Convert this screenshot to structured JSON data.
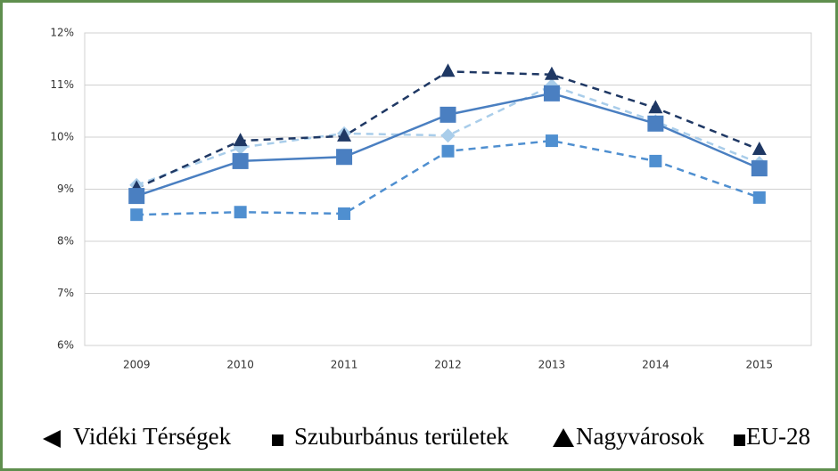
{
  "chart_data": {
    "type": "line",
    "categories": [
      "2009",
      "2010",
      "2011",
      "2012",
      "2013",
      "2014",
      "2015"
    ],
    "series": [
      {
        "name": "Vidéki Térségek",
        "color": "#a9cdea",
        "marker": "diamond",
        "dashed": true,
        "values": [
          9.08,
          9.8,
          10.07,
          10.03,
          10.99,
          10.3,
          9.5
        ]
      },
      {
        "name": "Szuburbánus területek",
        "color": "#4f8fd0",
        "marker": "square",
        "dashed": true,
        "values": [
          8.51,
          8.56,
          8.53,
          9.73,
          9.93,
          9.54,
          8.84
        ]
      },
      {
        "name": "Nagyvárosok",
        "color": "#1f3864",
        "marker": "triangle",
        "dashed": true,
        "values": [
          9.02,
          9.93,
          10.02,
          11.26,
          11.2,
          10.56,
          9.76
        ]
      },
      {
        "name": "EU-28",
        "color": "#4a7fc1",
        "marker": "bigsquare",
        "dashed": false,
        "values": [
          8.87,
          9.54,
          9.62,
          10.43,
          10.84,
          10.26,
          9.4
        ]
      }
    ],
    "ylim": [
      6,
      12
    ],
    "yticks": [
      {
        "value": 6,
        "label": "6%"
      },
      {
        "value": 7,
        "label": "7%"
      },
      {
        "value": 8,
        "label": "8%"
      },
      {
        "value": 9,
        "label": "9%"
      },
      {
        "value": 10,
        "label": "10%"
      },
      {
        "value": 11,
        "label": "11%"
      },
      {
        "value": 12,
        "label": "12%"
      }
    ],
    "grid": true
  }
}
